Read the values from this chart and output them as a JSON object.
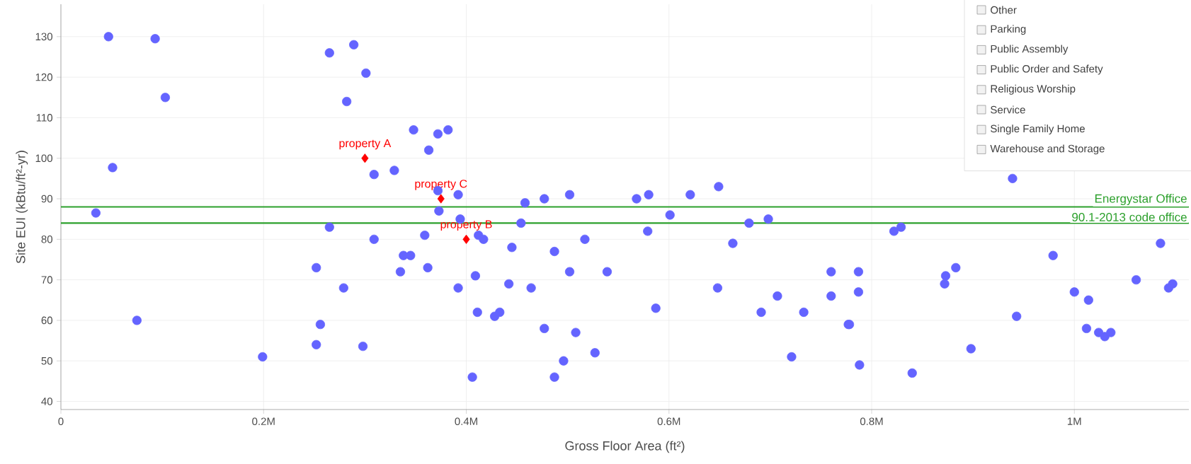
{
  "chart_data": {
    "type": "scatter",
    "xlabel": "Gross Floor Area  (ft²)",
    "ylabel": "Site EUI  (kBtu/ft²-yr)",
    "xlim": [
      0,
      1113000
    ],
    "ylim": [
      38,
      138
    ],
    "xticks": [
      0,
      {
        "value": 200000,
        "label": "0.2M"
      },
      {
        "value": 400000,
        "label": "0.4M"
      },
      {
        "value": 600000,
        "label": "0.6M"
      },
      {
        "value": 800000,
        "label": "0.8M"
      },
      {
        "value": 1000000,
        "label": "1M"
      }
    ],
    "yticks": [
      40,
      50,
      60,
      70,
      80,
      90,
      100,
      110,
      120,
      130
    ],
    "grid": true,
    "series": [
      {
        "color": "#6464ff",
        "marker": "circle",
        "x": [
          34500,
          47000,
          93000,
          103000,
          51000,
          75000,
          199000,
          265000,
          289000,
          301000,
          282000,
          265000,
          252000,
          256000,
          252000,
          279000,
          298000,
          309000,
          309000,
          329000,
          348000,
          335000,
          338000,
          345000,
          359000,
          362000,
          363000,
          372000,
          382000,
          372000,
          373000,
          392000,
          394000,
          392000,
          409000,
          412000,
          417000,
          411000,
          406000,
          428000,
          433000,
          442000,
          445000,
          454000,
          458000,
          464000,
          477000,
          477000,
          487000,
          487000,
          496000,
          502000,
          502000,
          508000,
          517000,
          527000,
          539000,
          568000,
          580000,
          579000,
          587000,
          601000,
          621000,
          649000,
          648000,
          663000,
          679000,
          698000,
          691000,
          707000,
          721000,
          733000,
          760000,
          760000,
          777000,
          778000,
          787000,
          787000,
          788000,
          822000,
          829000,
          840000,
          873000,
          872000,
          883000,
          898000,
          939000,
          943000,
          979000,
          1000000,
          1014000,
          1012000,
          1024000,
          1030000,
          1036000,
          1061000,
          1085000,
          1093000,
          1097000
        ],
        "values": [
          86.5,
          130,
          129.5,
          115,
          97.7,
          60,
          51,
          126,
          128,
          121,
          114,
          83,
          73,
          59,
          54,
          68,
          53.6,
          96,
          80,
          97,
          107,
          72,
          76,
          76,
          81,
          73,
          102,
          106,
          107,
          92,
          87,
          91,
          85,
          68,
          71,
          81,
          80,
          62,
          46,
          61,
          62,
          69,
          78,
          84,
          89,
          68,
          90,
          58,
          77,
          46,
          50,
          91,
          72,
          57,
          80,
          52,
          72,
          90,
          91,
          82,
          63,
          86,
          91,
          93,
          68,
          79,
          84,
          85,
          62,
          66,
          51,
          62,
          72,
          66,
          59,
          59,
          72,
          67,
          49,
          82,
          83,
          47,
          71,
          69,
          73,
          53,
          95,
          61,
          76,
          67,
          65,
          58,
          57,
          56,
          57,
          70,
          79,
          68,
          69
        ]
      },
      {
        "color": "#ff0000",
        "marker": "diamond",
        "x": [
          300000,
          375000,
          400000
        ],
        "values": [
          100,
          90,
          80
        ]
      }
    ],
    "ref_lines": [
      {
        "axis": "y",
        "value": 88,
        "label": "Energystar Office",
        "color": "#2ca02c"
      },
      {
        "axis": "y",
        "value": 84,
        "label": "90.1-2013 code office",
        "color": "#2ca02c"
      }
    ],
    "annotations": [
      {
        "text": "property A",
        "x": 300000,
        "y": 100
      },
      {
        "text": "property C",
        "x": 375000,
        "y": 90
      },
      {
        "text": "property B",
        "x": 400000,
        "y": 80
      },
      "Other",
      "Parking",
      "Public Assembly",
      "Public Order and Safety",
      "Religious Worship",
      "Service",
      "Single Family Home",
      "Warehouse and Storage"
    ]
  }
}
